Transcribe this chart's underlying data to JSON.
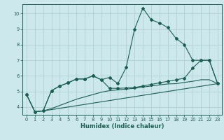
{
  "xlabel": "Humidex (Indice chaleur)",
  "xlim": [
    -0.5,
    23.5
  ],
  "ylim": [
    3.5,
    10.6
  ],
  "yticks": [
    4,
    5,
    6,
    7,
    8,
    9,
    10
  ],
  "xticks": [
    0,
    1,
    2,
    3,
    4,
    5,
    6,
    7,
    8,
    9,
    10,
    11,
    12,
    13,
    14,
    15,
    16,
    17,
    18,
    19,
    20,
    21,
    22,
    23
  ],
  "bg_color": "#cde8ec",
  "line_color": "#1a5f52",
  "grid_color": "#b8d8dc",
  "line1_x": [
    0,
    1,
    2,
    3,
    4,
    5,
    6,
    7,
    8,
    9,
    10,
    11,
    12,
    13,
    14,
    15,
    16,
    17,
    18,
    19,
    20,
    21,
    22,
    23
  ],
  "line1_y": [
    4.8,
    3.7,
    3.75,
    5.05,
    5.35,
    5.55,
    5.8,
    5.8,
    6.0,
    5.75,
    5.9,
    5.5,
    6.55,
    9.0,
    10.35,
    9.6,
    9.4,
    9.1,
    8.4,
    8.0,
    7.0,
    7.0,
    7.0,
    5.5
  ],
  "line2_x": [
    0,
    1,
    2,
    3,
    4,
    5,
    6,
    7,
    8,
    9,
    10,
    11,
    12,
    13,
    14,
    15,
    16,
    17,
    18,
    19,
    20,
    21,
    22,
    23
  ],
  "line2_y": [
    4.8,
    3.7,
    3.75,
    5.05,
    5.35,
    5.55,
    5.8,
    5.8,
    6.0,
    5.75,
    5.2,
    5.2,
    5.22,
    5.25,
    5.35,
    5.45,
    5.55,
    5.65,
    5.75,
    5.85,
    6.5,
    7.0,
    7.0,
    5.5
  ],
  "line3_x": [
    0,
    1,
    2,
    23
  ],
  "line3_y": [
    4.8,
    3.7,
    3.75,
    5.5
  ],
  "line4_x": [
    2,
    3,
    4,
    5,
    6,
    7,
    8,
    9,
    10,
    11,
    12,
    13,
    14,
    15,
    16,
    17,
    18,
    19,
    20,
    21,
    22,
    23
  ],
  "line4_y": [
    3.75,
    3.9,
    4.1,
    4.3,
    4.5,
    4.65,
    4.8,
    4.95,
    5.05,
    5.1,
    5.15,
    5.2,
    5.28,
    5.35,
    5.42,
    5.48,
    5.5,
    5.58,
    5.65,
    5.75,
    5.75,
    5.5
  ]
}
